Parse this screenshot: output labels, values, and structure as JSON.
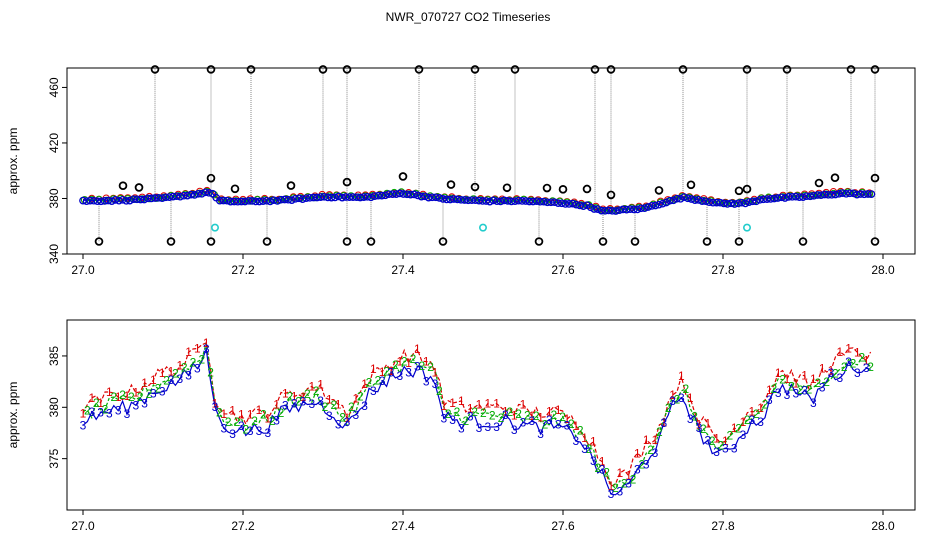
{
  "title": "NWR_070727  CO2 Timeseries",
  "chart_data": [
    {
      "type": "scatter",
      "ylabel": "approx. ppm",
      "xlim": [
        26.98,
        28.04
      ],
      "ylim": [
        340,
        474
      ],
      "xticks": [
        "27.0",
        "27.2",
        "27.4",
        "27.6",
        "27.8",
        "28.0"
      ],
      "yticks": [
        "340",
        "380",
        "420",
        "460"
      ],
      "baseline_x": [
        27.0,
        27.05,
        27.1,
        27.15,
        27.16,
        27.17,
        27.2,
        27.25,
        27.3,
        27.35,
        27.4,
        27.45,
        27.5,
        27.55,
        27.6,
        27.63,
        27.65,
        27.7,
        27.75,
        27.8,
        27.83,
        27.85,
        27.9,
        27.95,
        27.99
      ],
      "baseline_y": [
        378.5,
        379,
        380.5,
        384,
        385,
        378.5,
        378,
        379,
        381.5,
        381,
        384,
        380,
        378.5,
        378.5,
        377,
        375,
        371,
        373,
        381,
        376.5,
        377,
        380,
        381.5,
        384,
        383
      ],
      "outliers_high": [
        27.09,
        27.16,
        27.21,
        27.3,
        27.33,
        27.42,
        27.49,
        27.54,
        27.64,
        27.66,
        27.75,
        27.83,
        27.88,
        27.96,
        27.99
      ],
      "outliers_mid": [
        27.05,
        27.07,
        27.16,
        27.19,
        27.26,
        27.33,
        27.4,
        27.46,
        27.49,
        27.53,
        27.58,
        27.6,
        27.63,
        27.66,
        27.72,
        27.76,
        27.82,
        27.83,
        27.92,
        27.94,
        27.99
      ],
      "outliers_low": [
        27.02,
        27.11,
        27.16,
        27.23,
        27.33,
        27.36,
        27.45,
        27.57,
        27.65,
        27.69,
        27.78,
        27.82,
        27.9,
        27.99
      ],
      "cyan_points": [
        [
          27.165,
          359
        ],
        [
          27.5,
          359
        ],
        [
          27.83,
          359
        ]
      ],
      "series_colors": {
        "outliers": "#000000",
        "series1": "#dd0000",
        "series2": "#00aa00",
        "series3": "#0000cc",
        "flagged": "#22cccc"
      }
    },
    {
      "type": "line",
      "ylabel": "approx. ppm",
      "xlim": [
        26.98,
        28.04
      ],
      "ylim": [
        370,
        388.5
      ],
      "xticks": [
        "27.0",
        "27.2",
        "27.4",
        "27.6",
        "27.8",
        "28.0"
      ],
      "yticks": [
        "375",
        "380",
        "385"
      ],
      "x": [
        27.0,
        27.03,
        27.06,
        27.09,
        27.12,
        27.145,
        27.155,
        27.165,
        27.18,
        27.2,
        27.23,
        27.25,
        27.27,
        27.29,
        27.31,
        27.33,
        27.36,
        27.38,
        27.4,
        27.42,
        27.44,
        27.45,
        27.47,
        27.5,
        27.53,
        27.56,
        27.59,
        27.62,
        27.64,
        27.66,
        27.68,
        27.7,
        27.72,
        27.74,
        27.75,
        27.77,
        27.79,
        27.8,
        27.83,
        27.85,
        27.87,
        27.89,
        27.91,
        27.93,
        27.95,
        27.97,
        27.99
      ],
      "series": [
        {
          "name": "1",
          "color": "#dd0000",
          "offset": 1.0
        },
        {
          "name": "2",
          "color": "#00aa00",
          "offset": 0.2
        },
        {
          "name": "3",
          "color": "#0000cc",
          "offset": -0.4
        }
      ],
      "values": [
        379,
        380,
        380.5,
        382,
        383,
        384.5,
        386,
        380,
        378.5,
        378,
        378.5,
        380,
        380.5,
        381,
        380,
        378.5,
        382,
        383,
        384,
        384,
        383,
        379.5,
        379,
        379,
        379,
        378.5,
        378.5,
        377.5,
        375,
        372,
        372.5,
        375,
        377,
        381,
        381.5,
        378,
        376,
        375.5,
        378.5,
        379.5,
        382.5,
        382,
        381,
        383,
        384,
        384.5,
        383.5
      ]
    }
  ]
}
